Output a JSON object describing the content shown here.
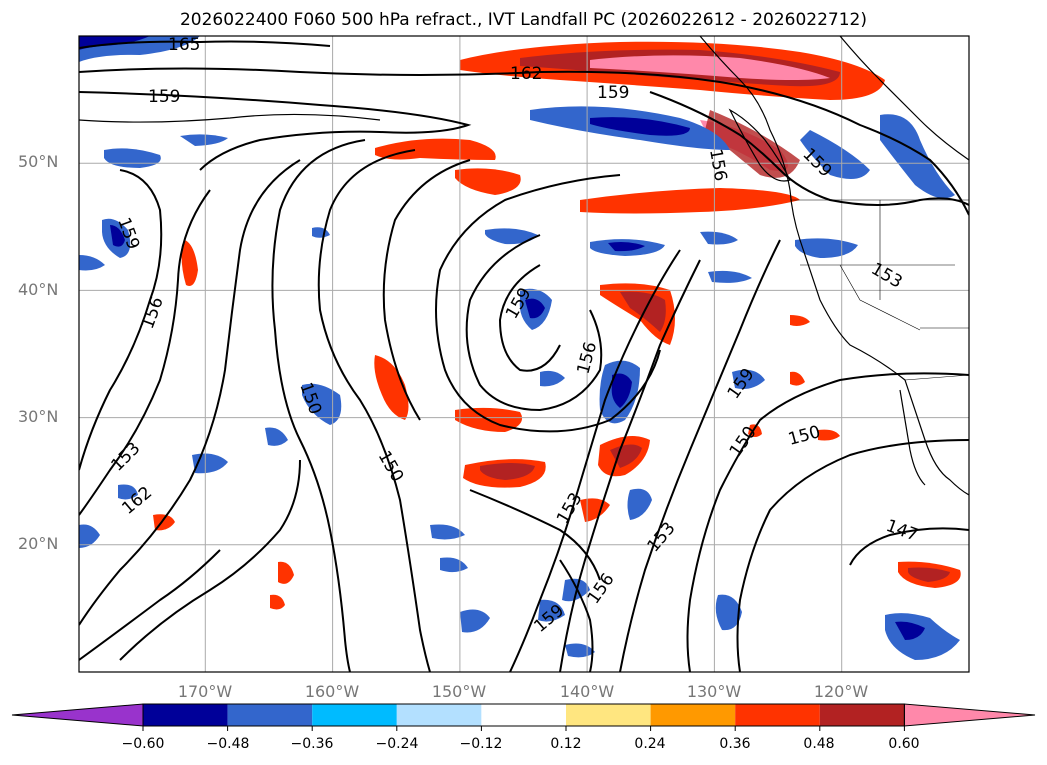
{
  "title": "2026022400 F060 500 hPa refract., IVT Landfall PC (2026022612 - 2026022712)",
  "axes": {
    "lat_ticks": [
      {
        "label": "50°N",
        "lat": 50
      },
      {
        "label": "40°N",
        "lat": 40
      },
      {
        "label": "30°N",
        "lat": 30
      },
      {
        "label": "20°N",
        "lat": 20
      }
    ],
    "lon_ticks": [
      {
        "label": "170°W",
        "lon": -170
      },
      {
        "label": "160°W",
        "lon": -160
      },
      {
        "label": "150°W",
        "lon": -150
      },
      {
        "label": "140°W",
        "lon": -140
      },
      {
        "label": "130°W",
        "lon": -130
      },
      {
        "label": "120°W",
        "lon": -120
      }
    ],
    "lon_range": [
      -180,
      -110
    ],
    "lat_range": [
      10,
      60
    ],
    "grid": true
  },
  "contour_labels": [
    "165",
    "162",
    "159",
    "159",
    "159",
    "156",
    "159",
    "153",
    "162",
    "156",
    "150",
    "150",
    "159",
    "153",
    "156",
    "159",
    "156",
    "153",
    "159",
    "150",
    "150",
    "147",
    "153"
  ],
  "colorbar": {
    "ticks": [
      "−0.60",
      "−0.48",
      "−0.36",
      "−0.24",
      "−0.12",
      "0.12",
      "0.24",
      "0.36",
      "0.48",
      "0.60"
    ],
    "colors": [
      "#9933cc",
      "#000099",
      "#3366cc",
      "#00bbff",
      "#b3e0ff",
      "#ffffff",
      "#ffe680",
      "#ff9900",
      "#ff3300",
      "#b22222",
      "#ff88aa"
    ],
    "extend": "both"
  }
}
